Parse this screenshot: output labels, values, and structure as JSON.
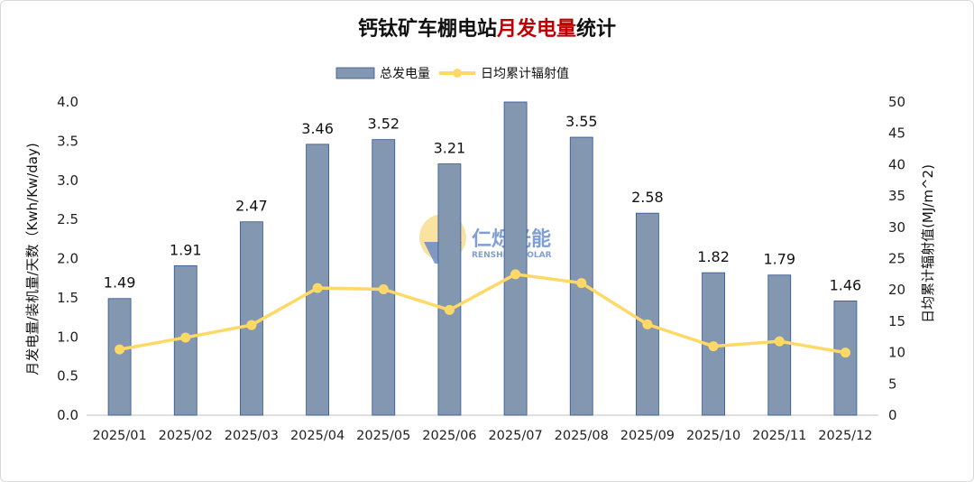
{
  "title": {
    "part1": "钙钛矿车棚电站",
    "part2": "月发电量",
    "part3": "统计"
  },
  "watermark": {
    "brand_cn": "仁烁光能",
    "brand_en": "RENSHINE SOLAR"
  },
  "colors": {
    "bar": "#8497b0",
    "bar_border": "#2f5597",
    "line": "#ffd966",
    "highlight": "#c00000"
  },
  "chart_data": {
    "type": "bar",
    "categories": [
      "2025/01",
      "2025/02",
      "2025/03",
      "2025/04",
      "2025/05",
      "2025/06",
      "2025/07",
      "2025/08",
      "2025/09",
      "2025/10",
      "2025/11",
      "2025/12"
    ],
    "series": [
      {
        "name": "总发电量",
        "type": "bar",
        "axis": "left",
        "values": [
          1.49,
          1.91,
          2.47,
          3.46,
          3.52,
          3.21,
          4.0,
          3.55,
          2.58,
          1.82,
          1.79,
          1.46
        ]
      },
      {
        "name": "日均累计辐射值",
        "type": "line",
        "axis": "right",
        "values": [
          10.5,
          12.4,
          14.4,
          20.3,
          20.1,
          16.8,
          22.5,
          21.1,
          14.5,
          11.0,
          11.8,
          10.0
        ]
      }
    ],
    "data_labels": [
      "1.49",
      "1.91",
      "2.47",
      "3.46",
      "3.52",
      "3.21",
      "",
      "3.55",
      "2.58",
      "1.82",
      "1.79",
      "1.46"
    ],
    "ylabel": "月发电量/装机量/天数（Kwh/Kw/day)",
    "y2label": "日均累计辐射值(MJ/m^2)",
    "ylim": [
      0,
      4.0
    ],
    "y2lim": [
      0,
      50
    ],
    "yticks": [
      "0.0",
      "0.5",
      "1.0",
      "1.5",
      "2.0",
      "2.5",
      "3.0",
      "3.5",
      "4.0"
    ],
    "y2ticks": [
      "0",
      "5",
      "10",
      "15",
      "20",
      "25",
      "30",
      "35",
      "40",
      "45",
      "50"
    ],
    "legend": "top-center",
    "grid": false
  }
}
